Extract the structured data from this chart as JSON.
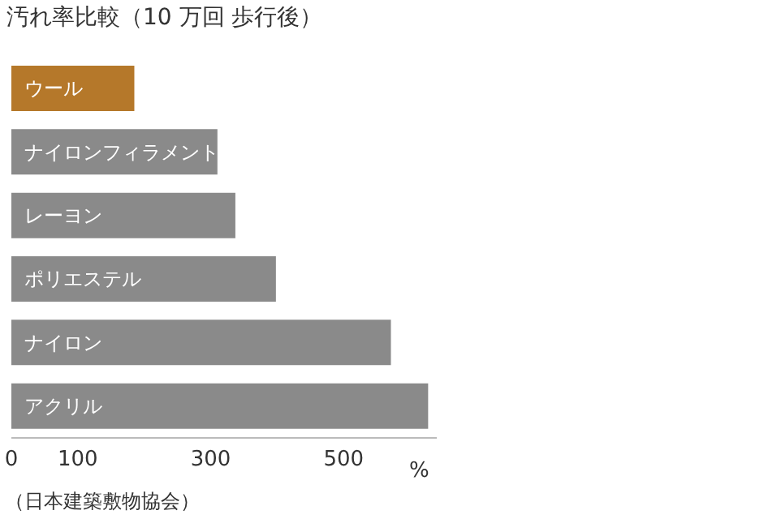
{
  "chart_data": {
    "type": "bar",
    "orientation": "horizontal",
    "title": "汚れ率比較（10 万回 歩行後）",
    "xlabel": "%",
    "categories": [
      "ウール",
      "ナイロンフィラメント",
      "レーヨン",
      "ポリエステル",
      "ナイロン",
      "アクリル"
    ],
    "values": [
      185,
      310,
      337,
      398,
      571,
      627
    ],
    "colors": [
      "#b5782a",
      "#8a8a8a",
      "#8a8a8a",
      "#8a8a8a",
      "#8a8a8a",
      "#8a8a8a"
    ],
    "xlim": [
      0,
      640
    ],
    "xticks": [
      0,
      100,
      300,
      500
    ],
    "grid": false,
    "legend": false,
    "annotations": [
      "（日本建築敷物協会）"
    ]
  }
}
